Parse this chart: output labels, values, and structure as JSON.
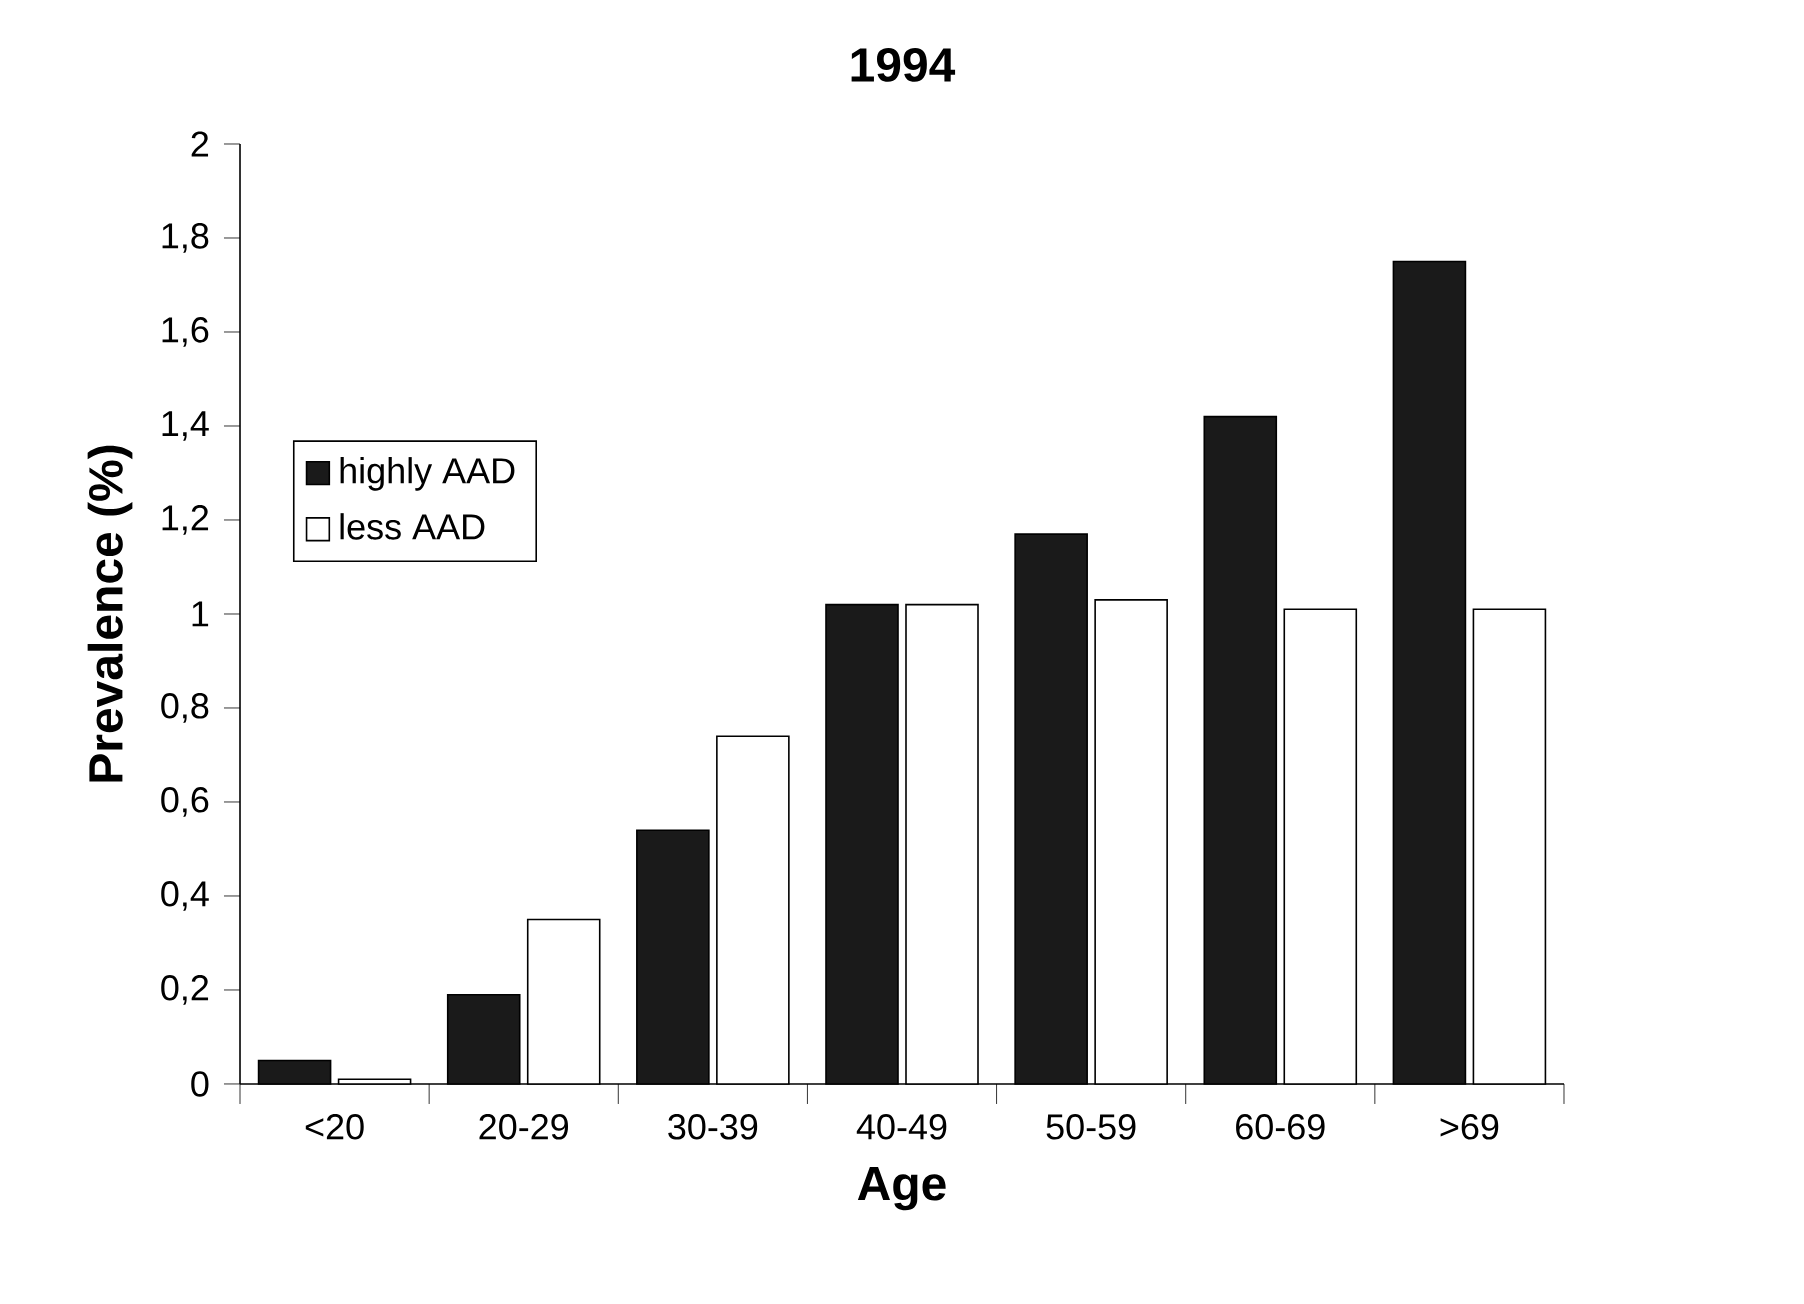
{
  "chart_data": {
    "type": "bar",
    "title": "1994",
    "xlabel": "Age",
    "ylabel": "Prevalence (%)",
    "categories": [
      "<20",
      "20-29",
      "30-39",
      "40-49",
      "50-59",
      "60-69",
      ">69"
    ],
    "series": [
      {
        "name": "highly AAD",
        "color": "#1a1a1a",
        "values": [
          0.05,
          0.19,
          0.54,
          1.02,
          1.17,
          1.42,
          1.75
        ]
      },
      {
        "name": "less AAD",
        "color": "#ffffff",
        "values": [
          0.01,
          0.35,
          0.74,
          1.02,
          1.03,
          1.01,
          1.01
        ]
      }
    ],
    "ylim": [
      0,
      2
    ],
    "yticks": [
      0,
      {
        "value": 0.2,
        "label": "0,2"
      },
      {
        "value": 0.4,
        "label": "0,4"
      },
      {
        "value": 0.6,
        "label": "0,6"
      },
      {
        "value": 0.8,
        "label": "0,8"
      },
      1,
      {
        "value": 1.2,
        "label": "1,2"
      },
      {
        "value": 1.4,
        "label": "1,4"
      },
      {
        "value": 1.6,
        "label": "1,6"
      },
      {
        "value": 1.8,
        "label": "1,8"
      },
      2
    ],
    "grid": false,
    "legend": "left"
  }
}
